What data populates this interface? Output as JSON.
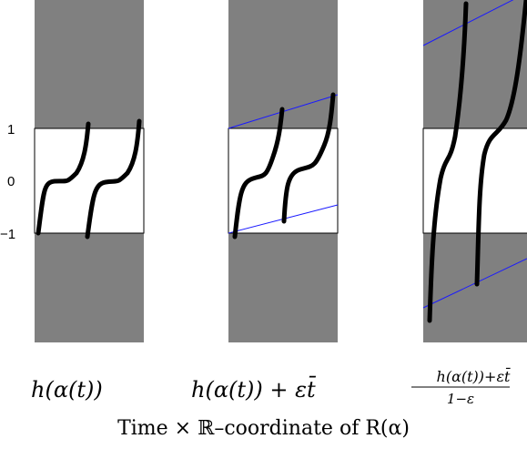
{
  "y_ticks": [
    "1",
    "0",
    "−1"
  ],
  "panels": [
    {
      "caption_main": "h(α(t))"
    },
    {
      "caption_main": "h(α(t)) + εt̄"
    },
    {
      "caption_num": "h(α(t))+εt̄",
      "caption_den": "1−ε"
    }
  ],
  "bottom_title": "Time × ℝ–coordinate of R(α)",
  "colors": {
    "band": "#808080",
    "box": "#ffffff",
    "curve": "#000000",
    "line": "#1a1aff"
  }
}
